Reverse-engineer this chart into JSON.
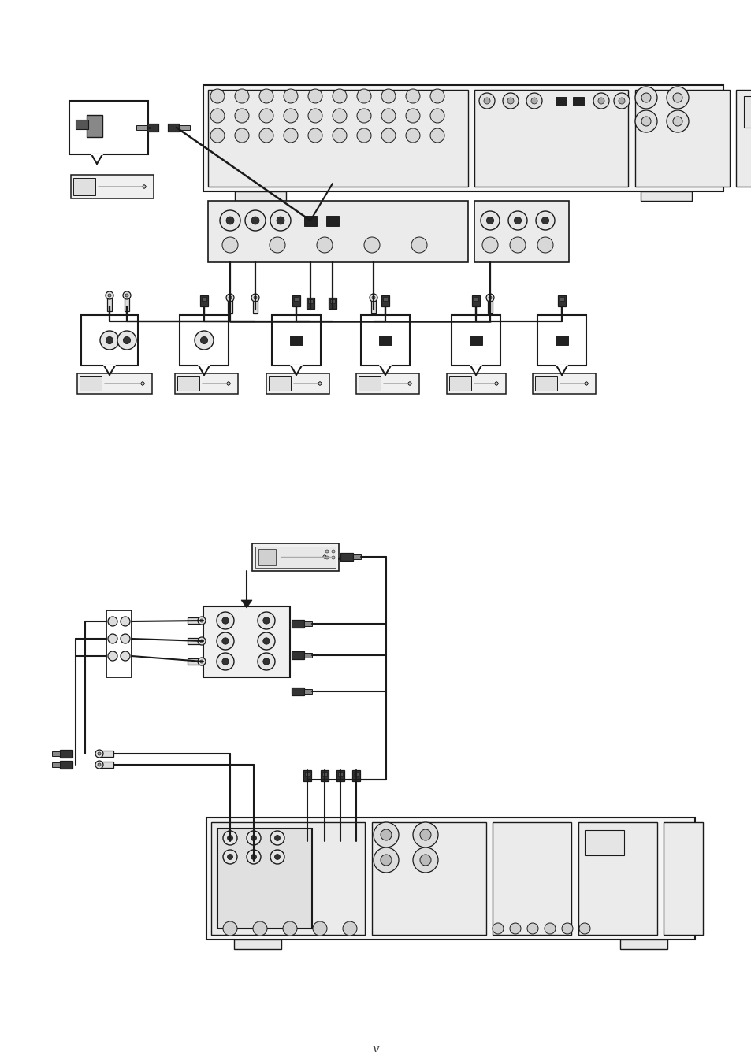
{
  "bg": "#ffffff",
  "lc": "#1a1a1a",
  "fig_w": 9.54,
  "fig_h": 13.51,
  "dpi": 100,
  "page_label": "v"
}
